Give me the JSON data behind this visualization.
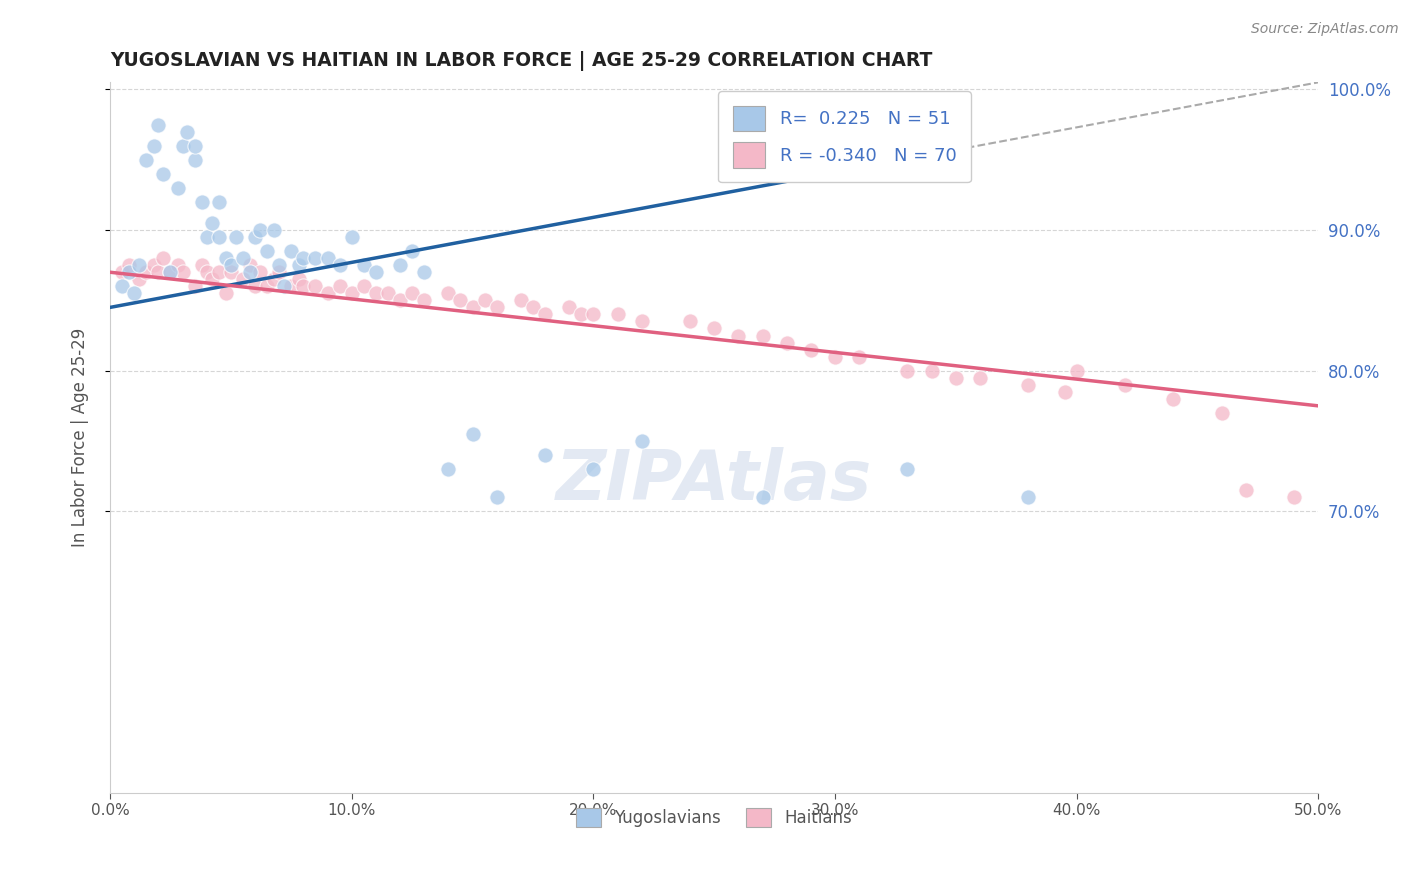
{
  "title": "YUGOSLAVIAN VS HAITIAN IN LABOR FORCE | AGE 25-29 CORRELATION CHART",
  "source": "Source: ZipAtlas.com",
  "ylabel": "In Labor Force | Age 25-29",
  "xlim": [
    0.0,
    0.5
  ],
  "ylim": [
    0.5,
    1.005
  ],
  "xticks": [
    0.0,
    0.1,
    0.2,
    0.3,
    0.4,
    0.5
  ],
  "xtick_labels": [
    "0.0%",
    "10.0%",
    "20.0%",
    "30.0%",
    "40.0%",
    "50.0%"
  ],
  "yticks": [
    0.7,
    0.8,
    0.9,
    1.0
  ],
  "ytick_labels": [
    "70.0%",
    "80.0%",
    "90.0%",
    "100.0%"
  ],
  "R_yugo": 0.225,
  "N_yugo": 51,
  "R_haitian": -0.34,
  "N_haitian": 70,
  "yugo_color": "#a8c8e8",
  "haitian_color": "#f4b8c8",
  "yugo_line_color": "#2060a0",
  "haitian_line_color": "#e06080",
  "legend_yugo_label": "Yugoslavians",
  "legend_haitian_label": "Haitians",
  "background_color": "#ffffff",
  "yugo_x": [
    0.005,
    0.008,
    0.01,
    0.012,
    0.015,
    0.018,
    0.02,
    0.022,
    0.025,
    0.028,
    0.03,
    0.032,
    0.035,
    0.035,
    0.038,
    0.04,
    0.042,
    0.045,
    0.045,
    0.048,
    0.05,
    0.052,
    0.055,
    0.058,
    0.06,
    0.062,
    0.065,
    0.068,
    0.07,
    0.072,
    0.075,
    0.078,
    0.08,
    0.085,
    0.09,
    0.095,
    0.1,
    0.105,
    0.11,
    0.12,
    0.125,
    0.13,
    0.14,
    0.15,
    0.16,
    0.18,
    0.2,
    0.22,
    0.27,
    0.33,
    0.38
  ],
  "yugo_y": [
    0.86,
    0.87,
    0.855,
    0.875,
    0.95,
    0.96,
    0.975,
    0.94,
    0.87,
    0.93,
    0.96,
    0.97,
    0.95,
    0.96,
    0.92,
    0.895,
    0.905,
    0.895,
    0.92,
    0.88,
    0.875,
    0.895,
    0.88,
    0.87,
    0.895,
    0.9,
    0.885,
    0.9,
    0.875,
    0.86,
    0.885,
    0.875,
    0.88,
    0.88,
    0.88,
    0.875,
    0.895,
    0.875,
    0.87,
    0.875,
    0.885,
    0.87,
    0.73,
    0.755,
    0.71,
    0.74,
    0.73,
    0.75,
    0.71,
    0.73,
    0.71
  ],
  "haitian_x": [
    0.005,
    0.008,
    0.012,
    0.015,
    0.018,
    0.02,
    0.022,
    0.025,
    0.028,
    0.03,
    0.035,
    0.038,
    0.04,
    0.042,
    0.045,
    0.048,
    0.05,
    0.055,
    0.058,
    0.06,
    0.062,
    0.065,
    0.068,
    0.07,
    0.075,
    0.078,
    0.08,
    0.085,
    0.09,
    0.095,
    0.1,
    0.105,
    0.11,
    0.115,
    0.12,
    0.125,
    0.13,
    0.14,
    0.145,
    0.15,
    0.155,
    0.16,
    0.17,
    0.175,
    0.18,
    0.19,
    0.195,
    0.2,
    0.21,
    0.22,
    0.24,
    0.25,
    0.26,
    0.27,
    0.28,
    0.29,
    0.3,
    0.31,
    0.33,
    0.34,
    0.35,
    0.36,
    0.38,
    0.395,
    0.4,
    0.42,
    0.44,
    0.46,
    0.47,
    0.49
  ],
  "haitian_y": [
    0.87,
    0.875,
    0.865,
    0.87,
    0.875,
    0.87,
    0.88,
    0.87,
    0.875,
    0.87,
    0.86,
    0.875,
    0.87,
    0.865,
    0.87,
    0.855,
    0.87,
    0.865,
    0.875,
    0.86,
    0.87,
    0.86,
    0.865,
    0.87,
    0.86,
    0.865,
    0.86,
    0.86,
    0.855,
    0.86,
    0.855,
    0.86,
    0.855,
    0.855,
    0.85,
    0.855,
    0.85,
    0.855,
    0.85,
    0.845,
    0.85,
    0.845,
    0.85,
    0.845,
    0.84,
    0.845,
    0.84,
    0.84,
    0.84,
    0.835,
    0.835,
    0.83,
    0.825,
    0.825,
    0.82,
    0.815,
    0.81,
    0.81,
    0.8,
    0.8,
    0.795,
    0.795,
    0.79,
    0.785,
    0.8,
    0.79,
    0.78,
    0.77,
    0.715,
    0.71
  ],
  "yugo_trendline_x0": 0.0,
  "yugo_trendline_y0": 0.845,
  "yugo_trendline_x1": 0.5,
  "yugo_trendline_y1": 1.005,
  "haitian_trendline_x0": 0.0,
  "haitian_trendline_y0": 0.87,
  "haitian_trendline_x1": 0.5,
  "haitian_trendline_y1": 0.775
}
